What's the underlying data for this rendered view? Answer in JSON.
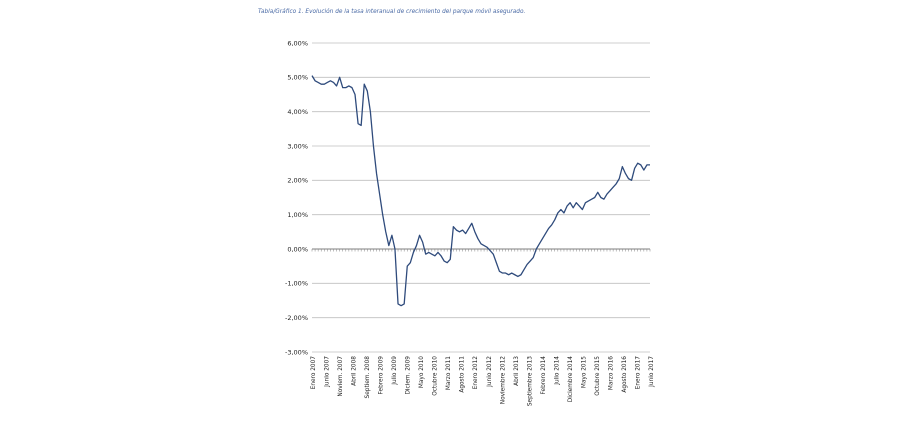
{
  "caption": "Tabla/Gráfico 1. Evolución de la tasa interanual de crecimiento del parque móvil asegurado.",
  "chart_data": {
    "type": "line",
    "ylim": [
      -3,
      6
    ],
    "yticks": [
      "6,00%",
      "5,00%",
      "4,00%",
      "3,00%",
      "2,00%",
      "1,00%",
      "0,00%",
      "-1,00%",
      "-2,00%",
      "-3,00%"
    ],
    "yvalues": [
      6,
      5,
      4,
      3,
      2,
      1,
      0,
      -1,
      -2,
      -3
    ],
    "grid": true,
    "xtick_labels": [
      "Enero 2007",
      "Junio 2007",
      "Noviem. 2007",
      "Abril 2008",
      "Septiem. 2008",
      "Febrero 2009",
      "Julio 2009",
      "Diciem. 2009",
      "Mayo 2010",
      "Octubre 2010",
      "Marzo 2011",
      "Agosto 2011",
      "Enero 2012",
      "Junio 2012",
      "Noviembre 2012",
      "Abril 2013",
      "Septiembre 2013",
      "Febrero 2014",
      "Julio 2014",
      "Diciembre 2014",
      "Mayo 2015",
      "Octubre 2015",
      "Marzo 2016",
      "Agosto 2016",
      "Enero 2017",
      "Junio 2017"
    ],
    "line_color": "#2f4b7c",
    "series": [
      {
        "values": [
          5.05,
          4.9,
          4.85,
          4.8,
          4.8,
          4.85,
          4.9,
          4.85,
          4.75,
          5.0,
          4.7,
          4.7,
          4.75,
          4.7,
          4.5,
          3.65,
          3.6,
          4.8,
          4.6,
          4.0,
          3.0,
          2.2,
          1.6,
          1.0,
          0.5,
          0.1,
          0.4,
          0.0,
          -1.6,
          -1.65,
          -1.6,
          -0.5,
          -0.4,
          -0.1,
          0.1,
          0.4,
          0.2,
          -0.15,
          -0.1,
          -0.15,
          -0.2,
          -0.1,
          -0.2,
          -0.35,
          -0.4,
          -0.3,
          0.65,
          0.55,
          0.5,
          0.55,
          0.45,
          0.6,
          0.75,
          0.5,
          0.3,
          0.15,
          0.1,
          0.05,
          -0.05,
          -0.15,
          -0.4,
          -0.65,
          -0.7,
          -0.7,
          -0.75,
          -0.7,
          -0.75,
          -0.8,
          -0.75,
          -0.6,
          -0.45,
          -0.35,
          -0.25,
          0.0,
          0.15,
          0.3,
          0.45,
          0.6,
          0.7,
          0.85,
          1.05,
          1.15,
          1.05,
          1.25,
          1.35,
          1.2,
          1.35,
          1.25,
          1.15,
          1.35,
          1.4,
          1.45,
          1.5,
          1.65,
          1.5,
          1.45,
          1.6,
          1.7,
          1.8,
          1.9,
          2.05,
          2.4,
          2.2,
          2.05,
          2.0,
          2.35,
          2.5,
          2.45,
          2.3,
          2.45,
          2.45
        ]
      }
    ]
  }
}
